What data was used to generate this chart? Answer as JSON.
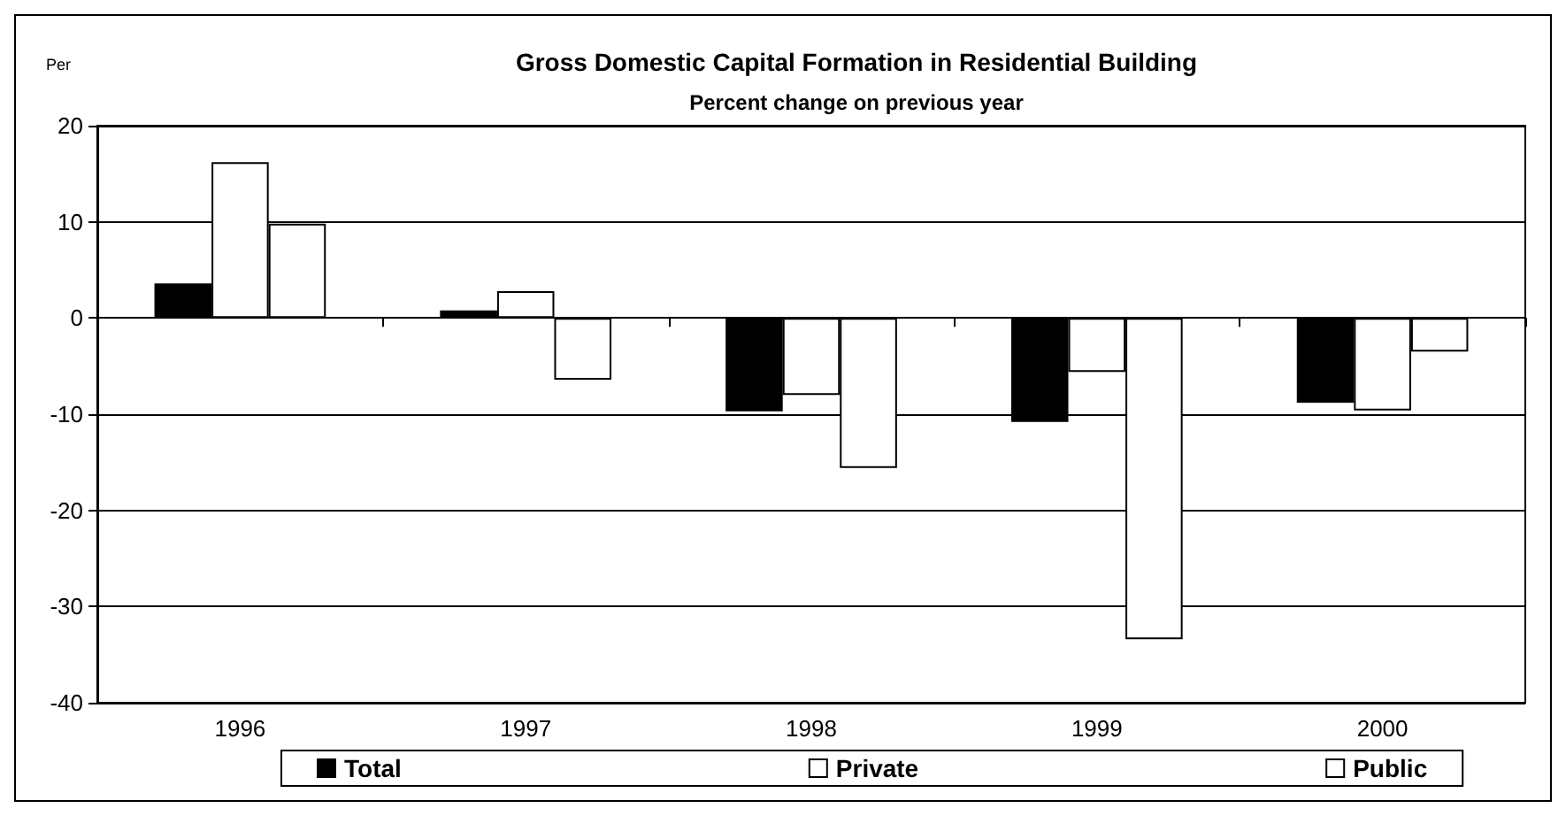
{
  "chart_data": {
    "type": "bar",
    "title": "Gross Domestic Capital Formation in Residential Building",
    "subtitle": "Percent change on previous year",
    "ylabel": "Per",
    "categories": [
      "1996",
      "1997",
      "1998",
      "1999",
      "2000"
    ],
    "series": [
      {
        "name": "Total",
        "color": "#000000",
        "values": [
          3.6,
          0.8,
          -9.7,
          -10.8,
          -8.8
        ]
      },
      {
        "name": "Private",
        "color": "#ffffff",
        "values": [
          16.2,
          2.8,
          -8.0,
          -5.6,
          -9.6
        ]
      },
      {
        "name": "Public",
        "color": "#ffffff",
        "values": [
          9.8,
          -6.4,
          -15.6,
          -33.4,
          -3.5
        ]
      }
    ],
    "ylim": [
      -40,
      20
    ],
    "yticks": [
      -40,
      -30,
      -20,
      -10,
      0,
      10,
      20
    ],
    "grid": "y",
    "legend": "bottom"
  }
}
